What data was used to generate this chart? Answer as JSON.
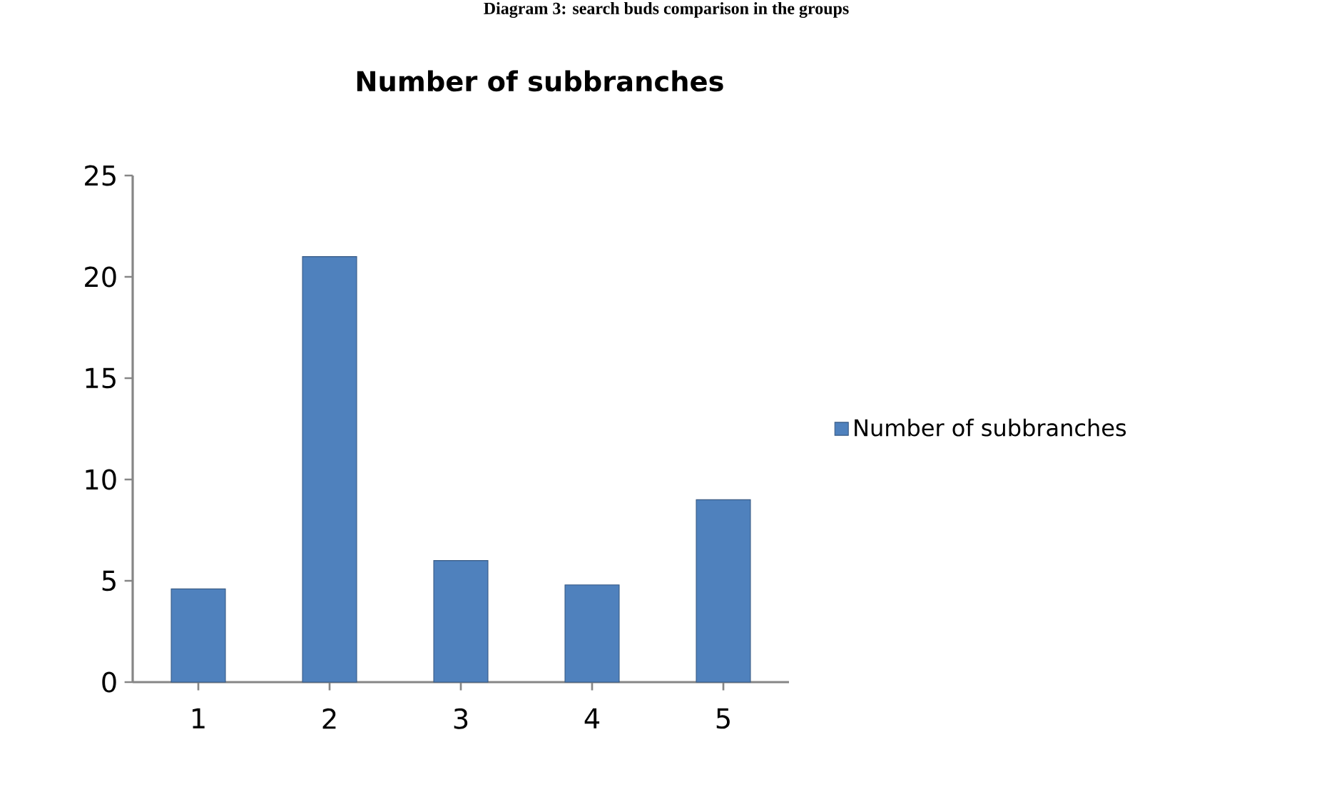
{
  "chart_data": {
    "type": "bar",
    "title": "Number of subbranches",
    "annotations": [
      "Diagram 3: search buds comparison in the groups"
    ],
    "categories": [
      "1",
      "2",
      "3",
      "4",
      "5"
    ],
    "series": [
      {
        "name": "Number of subbranches",
        "color": "#4f81bd",
        "values": [
          4.6,
          21,
          6,
          4.8,
          9
        ]
      }
    ],
    "ylim": [
      0,
      25
    ],
    "yticks": [
      0,
      5,
      10,
      15,
      20,
      25
    ],
    "grid": false,
    "legend": "right"
  }
}
